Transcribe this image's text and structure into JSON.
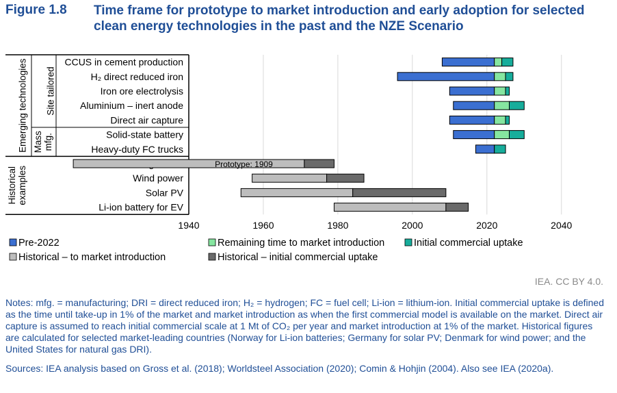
{
  "figure": {
    "number": "Figure 1.8",
    "title": "Time frame for prototype to market introduction and early adoption for selected clean energy technologies in the past and the NZE Scenario"
  },
  "colors": {
    "pre2022": "#3b6fd1",
    "remaining": "#86e6a0",
    "initial": "#17ad9b",
    "hist_intro": "#bdbdbd",
    "hist_uptake": "#6a6a6a",
    "text": "#1f4e96",
    "grid": "#d9d9d9"
  },
  "chart_data": {
    "type": "bar",
    "orientation": "horizontal-stacked-range",
    "xlim": [
      1940,
      2045
    ],
    "x_ticks": [
      1940,
      1960,
      1980,
      2000,
      2020,
      2040
    ],
    "grid": true,
    "legend_position": "bottom",
    "groups": [
      {
        "label": "Emerging technologies",
        "subgroups": [
          {
            "label": "Site tailored",
            "rows": [
              0,
              4
            ]
          },
          {
            "label": "Mass mfg.",
            "rows": [
              5,
              6
            ]
          }
        ]
      },
      {
        "label": "Historical examples",
        "rows": [
          7,
          10
        ]
      }
    ],
    "categories": [
      "CCUS in cement production",
      "H₂ direct reduced iron",
      "Iron ore electrolysis",
      "Aluminium – inert anode",
      "Direct air capture",
      "Solid-state battery",
      "Heavy-duty FC trucks",
      "Iron – natural gas DRI",
      "Wind power",
      "Solar PV",
      "Li-ion battery for EV"
    ],
    "series": [
      {
        "name": "Pre-2022",
        "color_key": "pre2022",
        "ranges": [
          [
            2008,
            2022
          ],
          [
            1996,
            2022
          ],
          [
            2010,
            2022
          ],
          [
            2011,
            2022
          ],
          [
            2010,
            2022
          ],
          [
            2011,
            2022
          ],
          [
            2017,
            2022
          ],
          null,
          null,
          null,
          null
        ]
      },
      {
        "name": "Remaining time to market introduction",
        "color_key": "remaining",
        "ranges": [
          [
            2022,
            2024
          ],
          [
            2022,
            2025
          ],
          [
            2022,
            2025
          ],
          [
            2022,
            2026
          ],
          [
            2022,
            2025
          ],
          [
            2022,
            2026
          ],
          null,
          null,
          null,
          null,
          null
        ]
      },
      {
        "name": "Initial commercial uptake",
        "color_key": "initial",
        "ranges": [
          [
            2024,
            2027
          ],
          [
            2025,
            2027
          ],
          [
            2025,
            2026
          ],
          [
            2026,
            2030
          ],
          [
            2025,
            2026
          ],
          [
            2026,
            2030
          ],
          [
            2022,
            2025
          ],
          null,
          null,
          null,
          null
        ]
      },
      {
        "name": "Historical – to market introduction",
        "color_key": "hist_intro",
        "ranges": [
          null,
          null,
          null,
          null,
          null,
          null,
          null,
          [
            1909,
            1971
          ],
          [
            1957,
            1977
          ],
          [
            1954,
            1984
          ],
          [
            1979,
            2009
          ]
        ]
      },
      {
        "name": "Historical – initial commercial uptake",
        "color_key": "hist_uptake",
        "ranges": [
          null,
          null,
          null,
          null,
          null,
          null,
          null,
          [
            1971,
            1979
          ],
          [
            1977,
            1987
          ],
          [
            1984,
            2009
          ],
          [
            2009,
            2015
          ]
        ]
      }
    ],
    "annotations": [
      {
        "row": 7,
        "text": "Prototype: 1909"
      }
    ]
  },
  "credit": "IEA. CC BY 4.0.",
  "notes": "Notes: mfg. = manufacturing; DRI = direct reduced iron; H₂ = hydrogen; FC = fuel cell; Li-ion = lithium-ion. Initial commercial uptake is defined as the time until take-up in 1% of the market and market introduction as when the first commercial model is available on the market. Direct air capture is assumed to reach initial commercial scale at 1 Mt of CO₂ per year and market introduction at 1% of the market. Historical figures are calculated for selected market-leading countries (Norway for Li-ion batteries; Germany for solar PV; Denmark for wind power; and the United States for natural gas DRI).",
  "sources": "Sources: IEA analysis based on Gross et al. (2018); Worldsteel Association (2020); Comin & Hohjin (2004). Also see IEA (2020a)."
}
